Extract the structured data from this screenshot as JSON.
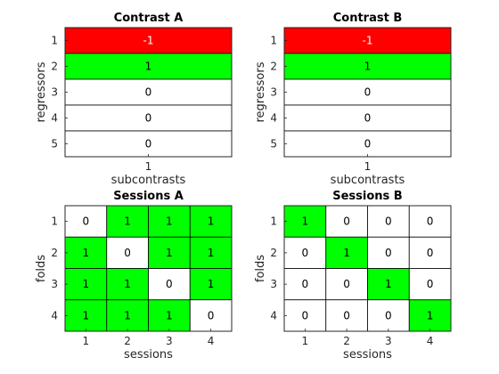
{
  "chart_data": [
    {
      "type": "heatmap",
      "title": "Contrast A",
      "xlabel": "subcontrasts",
      "ylabel": "regressors",
      "x_ticks": [
        "1"
      ],
      "y_ticks": [
        "1",
        "2",
        "3",
        "4",
        "5"
      ],
      "values": [
        [
          -1
        ],
        [
          1
        ],
        [
          0
        ],
        [
          0
        ],
        [
          0
        ]
      ],
      "colors": {
        "-1": "#ff0000",
        "0": "#ffffff",
        "1": "#00ff00"
      }
    },
    {
      "type": "heatmap",
      "title": "Contrast B",
      "xlabel": "subcontrasts",
      "ylabel": "regressors",
      "x_ticks": [
        "1"
      ],
      "y_ticks": [
        "1",
        "2",
        "3",
        "4",
        "5"
      ],
      "values": [
        [
          -1
        ],
        [
          1
        ],
        [
          0
        ],
        [
          0
        ],
        [
          0
        ]
      ],
      "colors": {
        "-1": "#ff0000",
        "0": "#ffffff",
        "1": "#00ff00"
      }
    },
    {
      "type": "heatmap",
      "title": "Sessions A",
      "xlabel": "sessions",
      "ylabel": "folds",
      "x_ticks": [
        "1",
        "2",
        "3",
        "4"
      ],
      "y_ticks": [
        "1",
        "2",
        "3",
        "4"
      ],
      "values": [
        [
          0,
          1,
          1,
          1
        ],
        [
          1,
          0,
          1,
          1
        ],
        [
          1,
          1,
          0,
          1
        ],
        [
          1,
          1,
          1,
          0
        ]
      ],
      "colors": {
        "0": "#ffffff",
        "1": "#00ff00"
      }
    },
    {
      "type": "heatmap",
      "title": "Sessions B",
      "xlabel": "sessions",
      "ylabel": "folds",
      "x_ticks": [
        "1",
        "2",
        "3",
        "4"
      ],
      "y_ticks": [
        "1",
        "2",
        "3",
        "4"
      ],
      "values": [
        [
          1,
          0,
          0,
          0
        ],
        [
          0,
          1,
          0,
          0
        ],
        [
          0,
          0,
          1,
          0
        ],
        [
          0,
          0,
          0,
          1
        ]
      ],
      "colors": {
        "0": "#ffffff",
        "1": "#00ff00"
      }
    }
  ]
}
